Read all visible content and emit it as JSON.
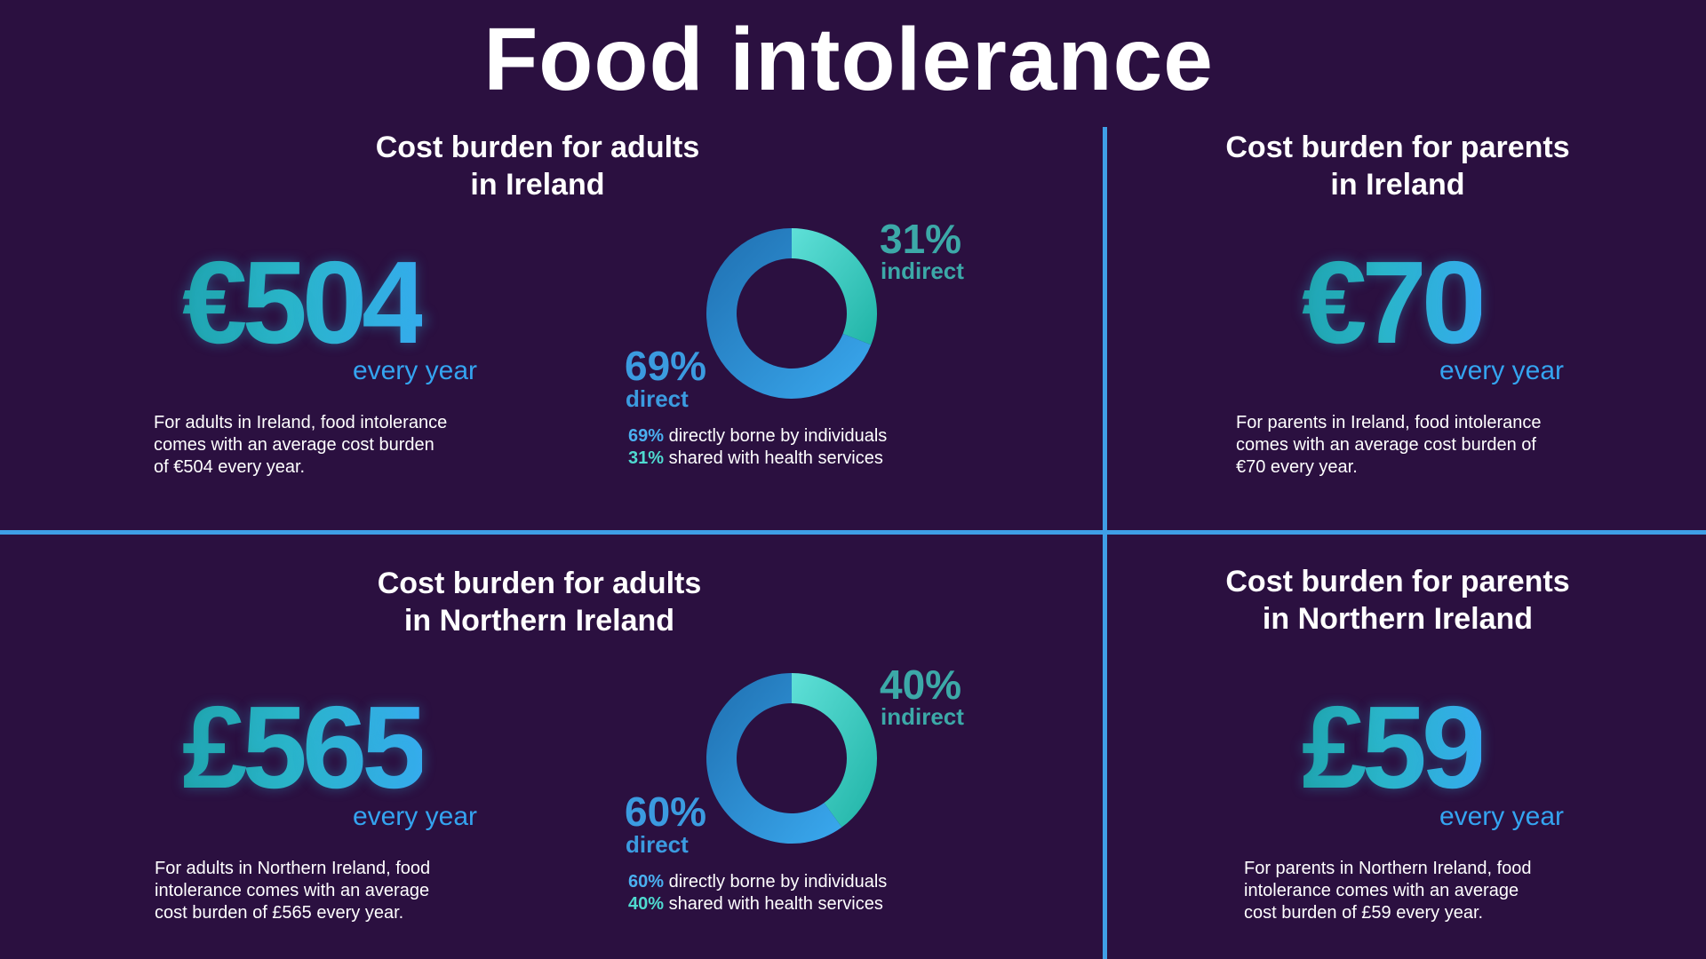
{
  "title": "Food intolerance",
  "panels": {
    "adults_ireland": {
      "title_line1": "Cost burden for adults",
      "title_line2": "in Ireland",
      "amount": "€504",
      "period": "every year",
      "desc_line1": "For adults in Ireland, food intolerance",
      "desc_line2": "comes with an average cost burden",
      "desc_line3": "of €504 every year.",
      "chart": {
        "indirect_pct": "31%",
        "indirect_label": "indirect",
        "direct_pct": "69%",
        "direct_label": "direct",
        "legend_direct_pct": "69%",
        "legend_direct_text": " directly borne by individuals",
        "legend_indirect_pct": "31%",
        "legend_indirect_text": " shared with health services"
      }
    },
    "parents_ireland": {
      "title_line1": "Cost burden for parents",
      "title_line2": "in Ireland",
      "amount": "€70",
      "period": "every year",
      "desc_line1": "For parents in Ireland, food intolerance",
      "desc_line2": "comes with an average cost burden of",
      "desc_line3": "€70 every year."
    },
    "adults_ni": {
      "title_line1": "Cost burden for adults",
      "title_line2": "in Northern Ireland",
      "amount": "£565",
      "period": "every year",
      "desc_line1": "For adults in Northern Ireland, food",
      "desc_line2": "intolerance comes with an average",
      "desc_line3": "cost burden of £565 every year.",
      "chart": {
        "indirect_pct": "40%",
        "indirect_label": "indirect",
        "direct_pct": "60%",
        "direct_label": "direct",
        "legend_direct_pct": "60%",
        "legend_direct_text": " directly borne by individuals",
        "legend_indirect_pct": "40%",
        "legend_indirect_text": " shared with health services"
      }
    },
    "parents_ni": {
      "title_line1": "Cost burden for parents",
      "title_line2": "in Northern Ireland",
      "amount": "£59",
      "period": "every year",
      "desc_line1": "For parents in Northern Ireland, food",
      "desc_line2": "intolerance comes with an average",
      "desc_line3": "cost burden of £59 every year."
    }
  },
  "chart_data": [
    {
      "type": "pie",
      "categories": [
        "indirect",
        "direct"
      ],
      "values": [
        31,
        69
      ],
      "colors": [
        "#3fd6cc",
        "#2f8fd8"
      ]
    },
    {
      "type": "pie",
      "categories": [
        "indirect",
        "direct"
      ],
      "values": [
        40,
        60
      ],
      "colors": [
        "#3fd6cc",
        "#2f8fd8"
      ]
    }
  ]
}
